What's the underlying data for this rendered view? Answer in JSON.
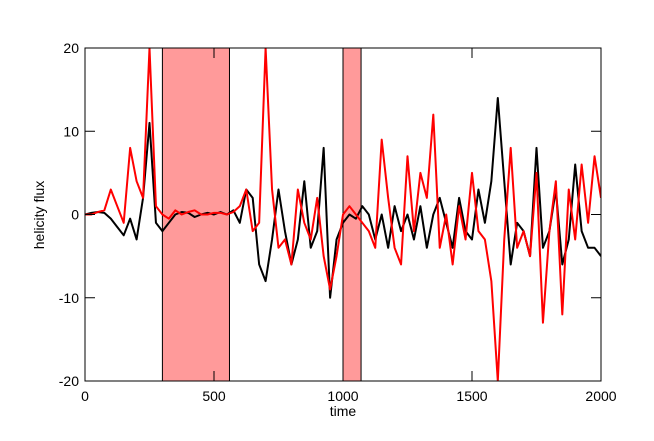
{
  "chart_data": {
    "type": "line",
    "xlabel": "time",
    "ylabel": "helicity flux",
    "x": [
      0,
      25,
      50,
      75,
      100,
      125,
      150,
      175,
      200,
      225,
      250,
      275,
      300,
      325,
      350,
      375,
      400,
      425,
      450,
      475,
      500,
      525,
      550,
      575,
      600,
      625,
      650,
      675,
      700,
      725,
      750,
      775,
      800,
      825,
      850,
      875,
      900,
      925,
      950,
      975,
      1000,
      1025,
      1050,
      1075,
      1100,
      1125,
      1150,
      1175,
      1200,
      1225,
      1250,
      1275,
      1300,
      1325,
      1350,
      1375,
      1400,
      1425,
      1450,
      1475,
      1500,
      1525,
      1550,
      1575,
      1600,
      1625,
      1650,
      1675,
      1700,
      1725,
      1750,
      1775,
      1800,
      1825,
      1850,
      1875,
      1900,
      1925,
      1950,
      1975,
      2000
    ],
    "series": [
      {
        "color": "#000000",
        "values": [
          0,
          0.2,
          0.3,
          0.2,
          -0.5,
          -1.5,
          -2.5,
          -0.5,
          -3,
          2,
          11,
          -1,
          -2,
          -1,
          0,
          0.3,
          0.2,
          -0.3,
          0,
          0.2,
          0,
          0.3,
          0,
          0.5,
          -1,
          3,
          2,
          -6,
          -8,
          -3,
          3,
          -2,
          -6,
          -3,
          4,
          -4,
          -2,
          8,
          -10,
          -3,
          -1,
          0,
          -0.5,
          1,
          0,
          -3,
          0,
          -4,
          1,
          -2,
          0,
          -3,
          1,
          -4,
          0,
          2,
          -1,
          -4,
          2,
          -2,
          -3,
          3,
          -1,
          4,
          14,
          4,
          -6,
          -1,
          -2,
          -5,
          8,
          -4,
          -2,
          3,
          -6,
          -3,
          6,
          -2,
          -4,
          -4,
          -5
        ]
      },
      {
        "color": "#ff0000",
        "values": [
          0,
          0,
          0.3,
          0.5,
          3,
          1,
          -1,
          8,
          4,
          2,
          20,
          1,
          0,
          -0.5,
          0.5,
          0,
          0.3,
          0.5,
          0,
          0,
          0.2,
          0.2,
          0,
          0.3,
          1,
          3,
          -2,
          -1,
          20,
          3,
          -4,
          -3,
          -6,
          3,
          -1,
          -3,
          2,
          -5,
          -9,
          -5,
          0,
          1,
          0,
          -1,
          -2,
          -4,
          9,
          2,
          -4,
          -6,
          7,
          -2,
          5,
          2,
          12,
          -4,
          0,
          -6,
          1,
          -3,
          5,
          -2,
          -3,
          -8,
          -20,
          -3,
          8,
          -4,
          -2,
          -5,
          5,
          -13,
          -2,
          4,
          -12,
          3,
          -3,
          6,
          -1,
          7,
          2
        ]
      }
    ],
    "shaded_regions": [
      [
        300,
        560
      ],
      [
        1000,
        1070
      ]
    ],
    "shade_color": "#ff9a9a",
    "xlim": [
      0,
      2000
    ],
    "xticks": [
      0,
      500,
      1000,
      1500,
      2000
    ],
    "ylim": [
      -20,
      20
    ],
    "yticks": [
      -20,
      -10,
      0,
      10,
      20
    ]
  }
}
